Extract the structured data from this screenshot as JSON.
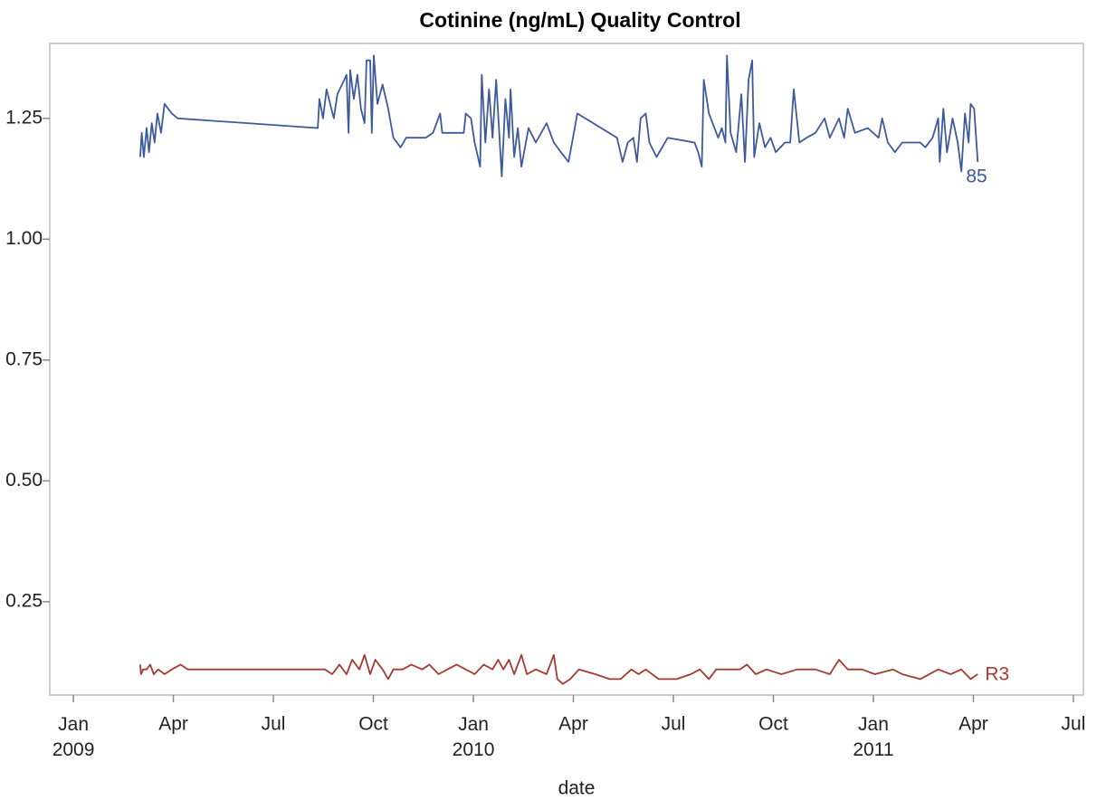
{
  "chart_data": {
    "type": "line",
    "title": "Cotinine (ng/mL) Quality Control",
    "x_label": "date",
    "xlim": [
      2008.941,
      2011.525
    ],
    "xticks": [
      {
        "value": 2009,
        "label": "Jan 2009"
      },
      {
        "value": 2009.25,
        "label": "Apr"
      },
      {
        "value": 2009.5,
        "label": "Jul"
      },
      {
        "value": 2009.75,
        "label": "Oct"
      },
      {
        "value": 2010,
        "label": "Jan 2010"
      },
      {
        "value": 2010.25,
        "label": "Apr"
      },
      {
        "value": 2010.5,
        "label": "Jul"
      },
      {
        "value": 2010.75,
        "label": "Oct"
      },
      {
        "value": 2011,
        "label": "Jan 2011"
      },
      {
        "value": 2011.25,
        "label": "Apr"
      },
      {
        "value": 2011.5,
        "label": "Jul"
      }
    ],
    "ylim": [
      0.057,
      1.405
    ],
    "yticks": [
      0.25,
      {
        "value": 0.5,
        "label": "0.50"
      },
      0.75,
      {
        "value": 1,
        "label": "1.00"
      },
      1.25
    ],
    "series": [
      {
        "name": "85",
        "color": "#3d5a9e",
        "x": [
          2009.167,
          2009.171,
          2009.176,
          2009.183,
          2009.189,
          2009.196,
          2009.203,
          2009.21,
          2009.219,
          2009.228,
          2009.246,
          2009.261,
          2009.611,
          2009.615,
          2009.624,
          2009.633,
          2009.642,
          2009.651,
          2009.66,
          2009.683,
          2009.688,
          2009.692,
          2009.701,
          2009.71,
          2009.719,
          2009.728,
          2009.733,
          2009.742,
          2009.746,
          2009.751,
          2009.76,
          2009.773,
          2009.787,
          2009.8,
          2009.818,
          2009.832,
          2009.845,
          2009.881,
          2009.899,
          2009.917,
          2009.922,
          2009.976,
          2009.981,
          2009.994,
          2010.003,
          2010.017,
          2010.021,
          2010.03,
          2010.039,
          2010.048,
          2010.057,
          2010.071,
          2010.08,
          2010.089,
          2010.093,
          2010.102,
          2010.111,
          2010.12,
          2010.138,
          2010.156,
          2010.183,
          2010.201,
          2010.219,
          2010.238,
          2010.26,
          2010.359,
          2010.373,
          2010.386,
          2010.4,
          2010.409,
          2010.418,
          2010.431,
          2010.44,
          2010.458,
          2010.486,
          2010.553,
          2010.562,
          2010.571,
          2010.576,
          2010.589,
          2010.612,
          2010.621,
          2010.63,
          2010.634,
          2010.643,
          2010.657,
          2010.67,
          2010.679,
          2010.688,
          2010.697,
          2010.702,
          2010.715,
          2010.729,
          2010.743,
          2010.756,
          2010.779,
          2010.792,
          2010.801,
          2010.815,
          2010.833,
          2010.855,
          2010.878,
          2010.891,
          2010.914,
          2010.927,
          2010.936,
          2010.954,
          2010.986,
          2011.013,
          2011.022,
          2011.036,
          2011.054,
          2011.072,
          2011.117,
          2011.13,
          2011.148,
          2011.162,
          2011.166,
          2011.175,
          2011.184,
          2011.198,
          2011.211,
          2011.22,
          2011.229,
          2011.238,
          2011.243,
          2011.252,
          2011.261
        ],
        "values": [
          1.17,
          1.22,
          1.17,
          1.23,
          1.18,
          1.24,
          1.2,
          1.26,
          1.22,
          1.28,
          1.26,
          1.25,
          1.23,
          1.29,
          1.25,
          1.31,
          1.28,
          1.25,
          1.3,
          1.34,
          1.22,
          1.35,
          1.29,
          1.34,
          1.27,
          1.24,
          1.37,
          1.37,
          1.22,
          1.38,
          1.28,
          1.32,
          1.27,
          1.21,
          1.19,
          1.21,
          1.21,
          1.21,
          1.22,
          1.26,
          1.22,
          1.22,
          1.26,
          1.25,
          1.2,
          1.15,
          1.34,
          1.2,
          1.31,
          1.21,
          1.33,
          1.13,
          1.29,
          1.21,
          1.31,
          1.17,
          1.23,
          1.15,
          1.23,
          1.2,
          1.24,
          1.2,
          1.18,
          1.16,
          1.26,
          1.21,
          1.16,
          1.2,
          1.21,
          1.16,
          1.25,
          1.26,
          1.2,
          1.17,
          1.21,
          1.2,
          1.18,
          1.15,
          1.33,
          1.26,
          1.21,
          1.23,
          1.2,
          1.38,
          1.22,
          1.18,
          1.3,
          1.16,
          1.33,
          1.37,
          1.17,
          1.24,
          1.19,
          1.21,
          1.18,
          1.2,
          1.2,
          1.31,
          1.2,
          1.21,
          1.22,
          1.25,
          1.21,
          1.25,
          1.21,
          1.27,
          1.22,
          1.23,
          1.21,
          1.25,
          1.2,
          1.18,
          1.2,
          1.2,
          1.19,
          1.21,
          1.25,
          1.16,
          1.27,
          1.18,
          1.25,
          1.2,
          1.14,
          1.26,
          1.2,
          1.28,
          1.27,
          1.16
        ]
      },
      {
        "name": "R3",
        "color": "#a63a31",
        "x": [
          2009.167,
          2009.169,
          2009.174,
          2009.183,
          2009.192,
          2009.201,
          2009.212,
          2009.228,
          2009.246,
          2009.268,
          2009.286,
          2009.611,
          2009.629,
          2009.647,
          2009.665,
          2009.683,
          2009.697,
          2009.715,
          2009.728,
          2009.742,
          2009.755,
          2009.773,
          2009.787,
          2009.8,
          2009.823,
          2009.845,
          2009.872,
          2009.89,
          2009.913,
          2009.935,
          2009.958,
          2009.981,
          2010.003,
          2010.026,
          2010.048,
          2010.062,
          2010.075,
          2010.089,
          2010.102,
          2010.12,
          2010.134,
          2010.156,
          2010.183,
          2010.201,
          2010.21,
          2010.224,
          2010.242,
          2010.264,
          2010.305,
          2010.341,
          2010.368,
          2010.395,
          2010.413,
          2010.431,
          2010.463,
          2010.508,
          2010.544,
          2010.566,
          2010.589,
          2010.607,
          2010.639,
          2010.666,
          2010.684,
          2010.706,
          2010.733,
          2010.77,
          2010.81,
          2010.855,
          2010.891,
          2010.914,
          2010.936,
          2010.972,
          2011.004,
          2011.049,
          2011.072,
          2011.117,
          2011.162,
          2011.193,
          2011.22,
          2011.243,
          2011.261
        ],
        "values": [
          0.12,
          0.1,
          0.11,
          0.11,
          0.12,
          0.1,
          0.11,
          0.1,
          0.11,
          0.12,
          0.11,
          0.11,
          0.11,
          0.1,
          0.12,
          0.1,
          0.13,
          0.11,
          0.14,
          0.1,
          0.13,
          0.11,
          0.09,
          0.11,
          0.11,
          0.12,
          0.11,
          0.12,
          0.1,
          0.11,
          0.12,
          0.11,
          0.1,
          0.12,
          0.11,
          0.13,
          0.11,
          0.13,
          0.1,
          0.14,
          0.1,
          0.11,
          0.1,
          0.14,
          0.09,
          0.08,
          0.09,
          0.11,
          0.1,
          0.09,
          0.09,
          0.11,
          0.1,
          0.11,
          0.09,
          0.09,
          0.1,
          0.11,
          0.09,
          0.11,
          0.11,
          0.11,
          0.12,
          0.1,
          0.11,
          0.1,
          0.11,
          0.11,
          0.1,
          0.13,
          0.11,
          0.11,
          0.1,
          0.11,
          0.1,
          0.09,
          0.11,
          0.1,
          0.11,
          0.09,
          0.1
        ]
      }
    ]
  }
}
